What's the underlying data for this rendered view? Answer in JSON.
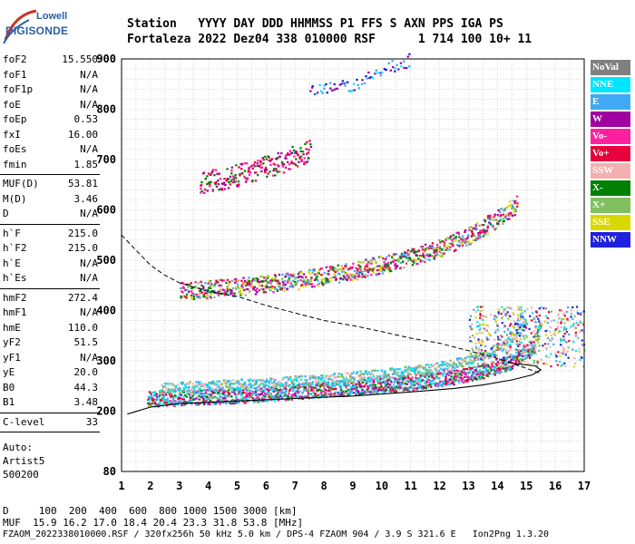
{
  "logo": {
    "line1": "Lowell",
    "line2": "DIGISONDE"
  },
  "header": {
    "labels": [
      "Station",
      "YYYY",
      "DAY",
      "DDD",
      "HHMMSS",
      "P1",
      "FFS",
      "S",
      "AXN",
      "PPS",
      "IGA",
      "PS"
    ],
    "values": [
      "Fortaleza",
      "2022",
      "Dez04",
      "338",
      "010000",
      "RSF",
      "1",
      "714",
      "100",
      "10+",
      "11"
    ]
  },
  "params": {
    "group1": [
      {
        "k": "foF2",
        "v": "15.550"
      },
      {
        "k": "foF1",
        "v": "N/A"
      },
      {
        "k": "foF1p",
        "v": "N/A"
      },
      {
        "k": "foE",
        "v": "N/A"
      },
      {
        "k": "foEp",
        "v": "0.53"
      },
      {
        "k": "fxI",
        "v": "16.00"
      },
      {
        "k": "foEs",
        "v": "N/A"
      },
      {
        "k": "fmin",
        "v": "1.85"
      }
    ],
    "group2": [
      {
        "k": "MUF(D)",
        "v": "53.81"
      },
      {
        "k": "M(D)",
        "v": "3.46"
      },
      {
        "k": "D",
        "v": "N/A"
      }
    ],
    "group3": [
      {
        "k": "h`F",
        "v": "215.0"
      },
      {
        "k": "h`F2",
        "v": "215.0"
      },
      {
        "k": "h`E",
        "v": "N/A"
      },
      {
        "k": "h`Es",
        "v": "N/A"
      }
    ],
    "group4": [
      {
        "k": "hmF2",
        "v": "272.4"
      },
      {
        "k": "hmF1",
        "v": "N/A"
      },
      {
        "k": "hmE",
        "v": "110.0"
      },
      {
        "k": "yF2",
        "v": "51.5"
      },
      {
        "k": "yF1",
        "v": "N/A"
      },
      {
        "k": "yE",
        "v": "20.0"
      },
      {
        "k": "B0",
        "v": "44.3"
      },
      {
        "k": "B1",
        "v": "3.48"
      }
    ],
    "group5": [
      {
        "k": "C-level",
        "v": "33"
      }
    ]
  },
  "notes": {
    "line1": "Auto:",
    "line2": "Artist5",
    "line3": "500200"
  },
  "legend": [
    {
      "label": "NoVal",
      "color": "#808080"
    },
    {
      "label": "NNE",
      "color": "#00e5ff"
    },
    {
      "label": "E",
      "color": "#3fa9f5"
    },
    {
      "label": "W",
      "color": "#a000a0"
    },
    {
      "label": "Vo-",
      "color": "#ff20a0"
    },
    {
      "label": "Vo+",
      "color": "#e8003c"
    },
    {
      "label": "SSW",
      "color": "#f4b0b0"
    },
    {
      "label": "X-",
      "color": "#008000"
    },
    {
      "label": "X+",
      "color": "#80c060"
    },
    {
      "label": "SSE",
      "color": "#d8d800"
    },
    {
      "label": "NNW",
      "color": "#2020e0"
    }
  ],
  "chart_data": {
    "type": "scatter",
    "xlim": [
      1,
      17
    ],
    "ylim": [
      80,
      900
    ],
    "x_ticks": [
      "1",
      "2",
      "3",
      "4",
      "5",
      "6",
      "7",
      "8",
      "9",
      "10",
      "11",
      "12",
      "13",
      "14",
      "15",
      "16",
      "17"
    ],
    "y_ticks": [
      "80",
      "200",
      "300",
      "400",
      "500",
      "600",
      "700",
      "800",
      "900"
    ],
    "grid": true,
    "legend_position": "right",
    "traces": {
      "o_trace_low": [
        [
          1.9,
          225
        ],
        [
          3,
          228
        ],
        [
          5,
          232
        ],
        [
          7,
          240
        ],
        [
          9,
          248
        ],
        [
          11,
          258
        ],
        [
          12.5,
          270
        ],
        [
          13.5,
          282
        ],
        [
          14.5,
          300
        ],
        [
          15.2,
          330
        ],
        [
          15.5,
          370
        ]
      ],
      "x_trace": [
        [
          2.3,
          248
        ],
        [
          4,
          252
        ],
        [
          6,
          258
        ],
        [
          8,
          265
        ],
        [
          10,
          275
        ],
        [
          11.5,
          285
        ],
        [
          12.5,
          295
        ],
        [
          13.5,
          312
        ],
        [
          14.3,
          335
        ],
        [
          15,
          380
        ]
      ],
      "f2_multi": [
        [
          3,
          440
        ],
        [
          5,
          448
        ],
        [
          7,
          460
        ],
        [
          9,
          480
        ],
        [
          10.5,
          500
        ],
        [
          12,
          525
        ],
        [
          13,
          550
        ],
        [
          14,
          585
        ],
        [
          14.7,
          615
        ]
      ],
      "f3_multi": [
        [
          3.7,
          655
        ],
        [
          5,
          670
        ],
        [
          6.5,
          695
        ],
        [
          7.5,
          720
        ]
      ],
      "top": [
        [
          7.5,
          835
        ],
        [
          9,
          850
        ],
        [
          10,
          880
        ],
        [
          11,
          900
        ]
      ]
    },
    "curves": {
      "true_height_profile": [
        [
          1.2,
          194
        ],
        [
          2,
          208
        ],
        [
          3,
          215
        ],
        [
          5,
          220
        ],
        [
          7,
          225
        ],
        [
          9,
          230
        ],
        [
          11,
          238
        ],
        [
          12.5,
          245
        ],
        [
          13.5,
          252
        ],
        [
          14.5,
          262
        ],
        [
          15.2,
          272
        ],
        [
          15.5,
          282
        ],
        [
          15.3,
          290
        ],
        [
          14.5,
          295
        ]
      ],
      "muf_dashed": [
        [
          1,
          550
        ],
        [
          1.5,
          520
        ],
        [
          2,
          490
        ],
        [
          2.5,
          470
        ],
        [
          3,
          455
        ],
        [
          4,
          438
        ],
        [
          5,
          428
        ],
        [
          6,
          410
        ],
        [
          7,
          395
        ],
        [
          8,
          380
        ],
        [
          9,
          370
        ],
        [
          10,
          358
        ],
        [
          11,
          345
        ],
        [
          12,
          335
        ],
        [
          13,
          320
        ],
        [
          14,
          305
        ],
        [
          15,
          285
        ],
        [
          15.5,
          275
        ]
      ]
    }
  },
  "bottom": {
    "line1": "D     100  200  400  600  800 1000 1500 3000 [km]",
    "line2": "MUF  15.9 16.2 17.0 18.4 20.4 23.3 31.8 53.8 [MHz]",
    "line3": "FZAOM_2022338010000.RSF / 320fx256h 50 kHz 5.0 km / DPS-4 FZAOM 904 / 3.9 S 321.6 E   Ion2Png 1.3.20"
  }
}
